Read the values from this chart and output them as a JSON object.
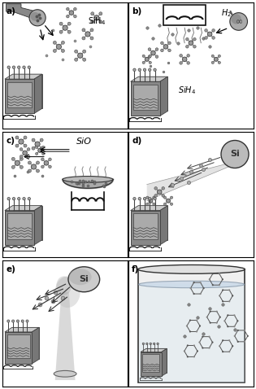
{
  "title": "",
  "panels": [
    "a",
    "b",
    "c",
    "d",
    "e",
    "f"
  ],
  "labels": {
    "a": "SiH₄",
    "b_top": "H₂",
    "b_bot": "SiH₄",
    "c": "SiO",
    "d": "Si",
    "e": "Si",
    "f": ""
  },
  "bg_color": "#ffffff",
  "dark_gray": "#444444",
  "mid_gray": "#777777",
  "light_gray": "#bbbbbb",
  "border_color": "#111111"
}
